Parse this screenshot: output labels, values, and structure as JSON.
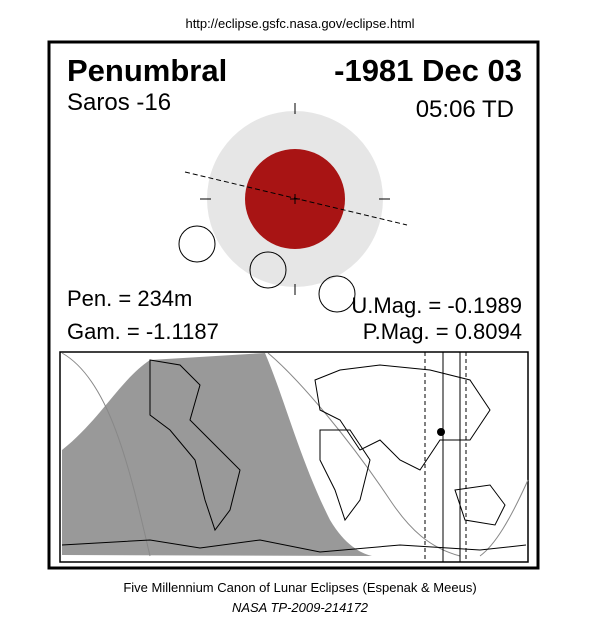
{
  "header": {
    "url": "http://eclipse.gsfc.nasa.gov/eclipse.html"
  },
  "eclipse": {
    "type": "Penumbral",
    "date": "-1981 Dec 03",
    "saros": "Saros -16",
    "time": "05:06 TD",
    "pen": "Pen. = 234m",
    "gam": "Gam. = -1.1187",
    "umag": "U.Mag. = -0.1989",
    "pmag": "P.Mag. = 0.8094"
  },
  "footer": {
    "line1": "Five Millennium Canon of Lunar Eclipses (Espenak & Meeus)",
    "line2": "NASA TP-2009-214172"
  }
}
